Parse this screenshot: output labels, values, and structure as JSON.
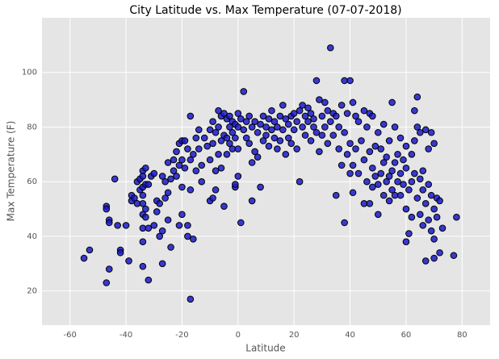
{
  "chart_data": {
    "type": "scatter",
    "title": "City Latitude vs. Max Temperature (07-07-2018)",
    "x_label": "Latitude",
    "y_label": "Max Temperature (F)",
    "color": "#1a1acc",
    "edge_color": "#000000",
    "background": "#e5e5e5",
    "grid": true,
    "xlim": [
      -70,
      90
    ],
    "ylim": [
      7.5,
      120
    ],
    "xticks": [
      -60,
      -40,
      -20,
      0,
      20,
      40,
      60,
      80
    ],
    "yticks": [
      20,
      40,
      60,
      80,
      100
    ],
    "x": [
      -55,
      -53,
      -47,
      -47,
      -46,
      -46,
      -46,
      -47,
      -44,
      -43,
      -42,
      -42,
      -40,
      -39,
      -38,
      -38,
      -37,
      -36,
      -36,
      -35,
      -35,
      -34,
      -34,
      -34,
      -34,
      -34,
      -34,
      -34,
      -34,
      -34,
      -33,
      -33,
      -33,
      -33,
      -32,
      -32,
      -32,
      -31,
      -30,
      -30,
      -29,
      -29,
      -28,
      -28,
      -27,
      -27,
      -27,
      -26,
      -26,
      -25,
      -25,
      -25,
      -24,
      -24,
      -23,
      -23,
      -22,
      -22,
      -21,
      -21,
      -21,
      -20,
      -20,
      -20,
      -20,
      -19,
      -19,
      -18,
      -18,
      -18,
      -17,
      -17,
      -17,
      -17,
      -16,
      -16,
      -15,
      -15,
      -14,
      -14,
      -13,
      -13,
      -12,
      -11,
      -10,
      -10,
      -10,
      -9,
      -9,
      -9,
      -8,
      -8,
      -8,
      -7,
      -7,
      -7,
      -6,
      -6,
      -6,
      -5,
      -5,
      -5,
      -4,
      -4,
      -4,
      -3,
      -3,
      -3,
      -2,
      -2,
      -2,
      -1,
      -1,
      -1,
      -1,
      0,
      0,
      0,
      0,
      1,
      1,
      2,
      2,
      3,
      3,
      4,
      4,
      5,
      5,
      5,
      6,
      6,
      7,
      7,
      8,
      8,
      9,
      9,
      10,
      10,
      11,
      11,
      12,
      12,
      13,
      13,
      14,
      14,
      15,
      15,
      16,
      16,
      17,
      17,
      18,
      18,
      19,
      19,
      20,
      20,
      21,
      21,
      22,
      22,
      23,
      23,
      24,
      24,
      25,
      25,
      26,
      26,
      27,
      27,
      28,
      28,
      29,
      29,
      30,
      30,
      31,
      31,
      32,
      32,
      33,
      33,
      34,
      34,
      35,
      35,
      36,
      36,
      37,
      37,
      38,
      38,
      38,
      39,
      39,
      40,
      40,
      40,
      41,
      41,
      41,
      42,
      42,
      43,
      43,
      44,
      45,
      45,
      45,
      46,
      46,
      47,
      47,
      47,
      48,
      48,
      48,
      49,
      49,
      50,
      50,
      50,
      51,
      51,
      52,
      52,
      52,
      53,
      53,
      54,
      54,
      54,
      55,
      55,
      55,
      56,
      56,
      56,
      57,
      57,
      58,
      58,
      58,
      59,
      59,
      60,
      60,
      60,
      60,
      61,
      61,
      62,
      62,
      62,
      63,
      63,
      63,
      64,
      64,
      64,
      65,
      65,
      65,
      66,
      66,
      66,
      67,
      67,
      67,
      68,
      68,
      68,
      69,
      69,
      69,
      70,
      70,
      70,
      70,
      71,
      71,
      72,
      72,
      73,
      77,
      78
    ],
    "y": [
      32,
      35,
      51,
      50,
      46,
      45,
      28,
      23,
      61,
      44,
      35,
      34,
      44,
      31,
      53,
      55,
      54,
      60,
      52,
      61,
      57,
      64,
      62,
      58,
      55,
      52,
      48,
      43,
      38,
      29,
      65,
      59,
      50,
      47,
      59,
      24,
      43,
      62,
      63,
      44,
      53,
      49,
      52,
      40,
      62,
      30,
      42,
      60,
      54,
      67,
      56,
      46,
      36,
      61,
      68,
      64,
      71,
      62,
      74,
      66,
      44,
      75,
      68,
      58,
      48,
      75,
      65,
      72,
      44,
      40,
      84,
      68,
      57,
      17,
      70,
      39,
      76,
      64,
      79,
      72,
      66,
      60,
      76,
      73,
      53,
      79,
      68,
      82,
      54,
      74,
      78,
      64,
      57,
      86,
      80,
      70,
      84,
      75,
      65,
      85,
      77,
      51,
      83,
      76,
      70,
      84,
      80,
      74,
      82,
      78,
      72,
      81,
      76,
      58,
      59,
      85,
      80,
      72,
      62,
      45,
      83,
      93,
      79,
      82,
      76,
      84,
      74,
      80,
      67,
      53,
      82,
      71,
      78,
      69,
      81,
      58,
      84,
      75,
      80,
      77,
      83,
      73,
      86,
      79,
      82,
      76,
      80,
      72,
      84,
      75,
      88,
      79,
      83,
      70,
      81,
      76,
      84,
      74,
      85,
      79,
      82,
      72,
      86,
      60,
      88,
      80,
      84,
      77,
      87,
      82,
      85,
      75,
      83,
      80,
      97,
      78,
      90,
      71,
      84,
      77,
      89,
      80,
      86,
      74,
      109,
      82,
      85,
      77,
      84,
      55,
      80,
      72,
      88,
      66,
      97,
      78,
      45,
      85,
      70,
      97,
      63,
      74,
      89,
      56,
      66,
      84,
      72,
      82,
      63,
      75,
      86,
      68,
      52,
      80,
      60,
      85,
      71,
      52,
      84,
      65,
      58,
      73,
      62,
      78,
      59,
      48,
      72,
      63,
      81,
      67,
      55,
      69,
      60,
      75,
      62,
      53,
      89,
      64,
      57,
      80,
      67,
      55,
      70,
      60,
      76,
      63,
      55,
      68,
      59,
      73,
      65,
      50,
      38,
      57,
      41,
      70,
      60,
      47,
      86,
      75,
      63,
      91,
      80,
      54,
      78,
      61,
      48,
      64,
      57,
      44,
      79,
      52,
      31,
      72,
      59,
      46,
      78,
      55,
      42,
      74,
      50,
      39,
      32,
      54,
      47,
      53,
      34,
      43,
      33,
      47
    ]
  }
}
